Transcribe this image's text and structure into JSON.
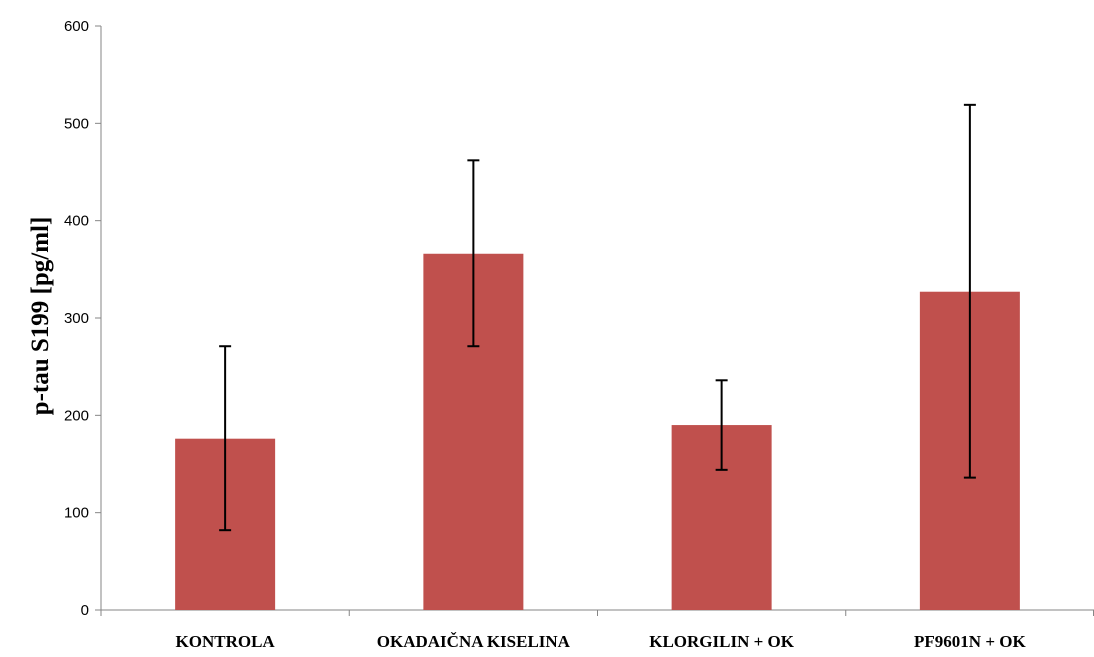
{
  "chart_data": {
    "type": "bar",
    "categories": [
      "KONTROLA",
      "OKADAIČNA KISELINA",
      "KLORGILIN + OK",
      "PF9601N + OK"
    ],
    "values": [
      176,
      366,
      190,
      327
    ],
    "error_low": [
      82,
      271,
      144,
      136
    ],
    "error_high": [
      271,
      462,
      236,
      519
    ],
    "title": "",
    "xlabel": "",
    "ylabel": "p-tau S199 [pg/ml]",
    "ylim": [
      0,
      600
    ],
    "yticks": [
      0,
      100,
      200,
      300,
      400,
      500,
      600
    ],
    "grid": false,
    "legend": "none",
    "bar_color": "#c0504d",
    "error_color": "#000000"
  }
}
